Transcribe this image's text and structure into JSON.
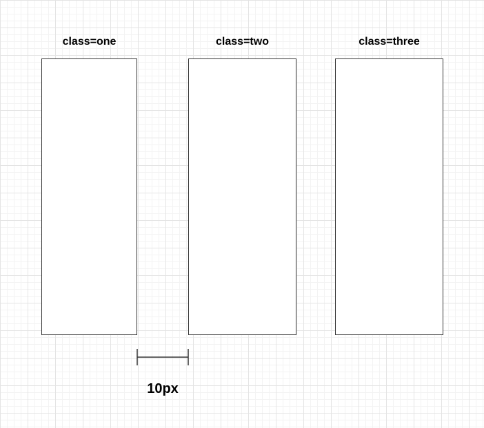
{
  "boxes": [
    {
      "label": "class=one"
    },
    {
      "label": "class=two"
    },
    {
      "label": "class=three"
    }
  ],
  "gap": {
    "label": "10px"
  },
  "colors": {
    "stroke": "#333333",
    "background": "#ffffff",
    "grid": "#e4e4e4"
  }
}
